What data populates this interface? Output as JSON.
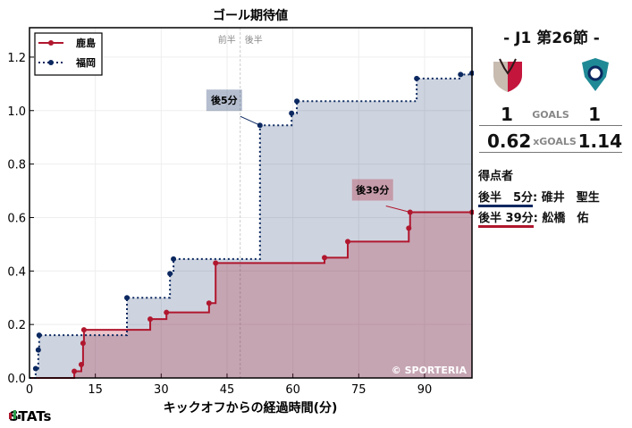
{
  "chart_data": {
    "type": "line",
    "title": "ゴール期待値",
    "xlabel": "キックオフからの経過時間(分)",
    "ylabel": "",
    "xlim": [
      0,
      100.8
    ],
    "ylim": [
      0,
      1.31
    ],
    "xticks": [
      "0",
      "15",
      "30",
      "45",
      "60",
      "75",
      "90"
    ],
    "yticks": [
      "0.0",
      "0.2",
      "0.4",
      "0.6",
      "0.8",
      "1.0",
      "1.2"
    ],
    "grid": true,
    "legend": "top-left",
    "step": true,
    "halftime_labels": [
      "前半",
      "後半"
    ],
    "series": [
      {
        "name": "鹿島",
        "color": "#b0172e",
        "style": "solid",
        "x": [
          0,
          10.2,
          11.8,
          12.2,
          12.4,
          27.5,
          31.2,
          40.9,
          42.4,
          67.2,
          72.5,
          86.4,
          86.7,
          100.8
        ],
        "y": [
          0,
          0.025,
          0.05,
          0.13,
          0.18,
          0.22,
          0.245,
          0.28,
          0.43,
          0.45,
          0.51,
          0.56,
          0.62,
          0.62
        ]
      },
      {
        "name": "福岡",
        "color": "#0b2860",
        "style": "dotted",
        "x": [
          0,
          1.4,
          2.0,
          2.2,
          22.2,
          32.0,
          32.8,
          52.5,
          59.7,
          60.9,
          88.2,
          98.2,
          100.8
        ],
        "y": [
          0,
          0.035,
          0.105,
          0.16,
          0.3,
          0.39,
          0.445,
          0.945,
          0.99,
          1.035,
          1.12,
          1.135,
          1.14
        ]
      }
    ],
    "annotations": [
      {
        "text": "後5分",
        "x": 52.5,
        "y": 0.945,
        "series": "福岡"
      },
      {
        "text": "後39分",
        "x": 86.7,
        "y": 0.62,
        "series": "鹿島"
      }
    ],
    "watermark": "© SPORTERIA"
  },
  "side": {
    "round": "- J1 第26節 -",
    "home_goals": "1",
    "goals_label": "GOALS",
    "away_goals": "1",
    "home_xg": "0.62",
    "xg_label": "xGOALS",
    "away_xg": "1.14",
    "scorers_title": "得点者",
    "scorers": [
      {
        "time": "後半　5分",
        "name": ": 碓井　聖生",
        "color": "#0b2860"
      },
      {
        "time": "後半 39分",
        "name": ": 舩橋　佑",
        "color": "#b0172e"
      }
    ]
  },
  "brand": "STATs"
}
